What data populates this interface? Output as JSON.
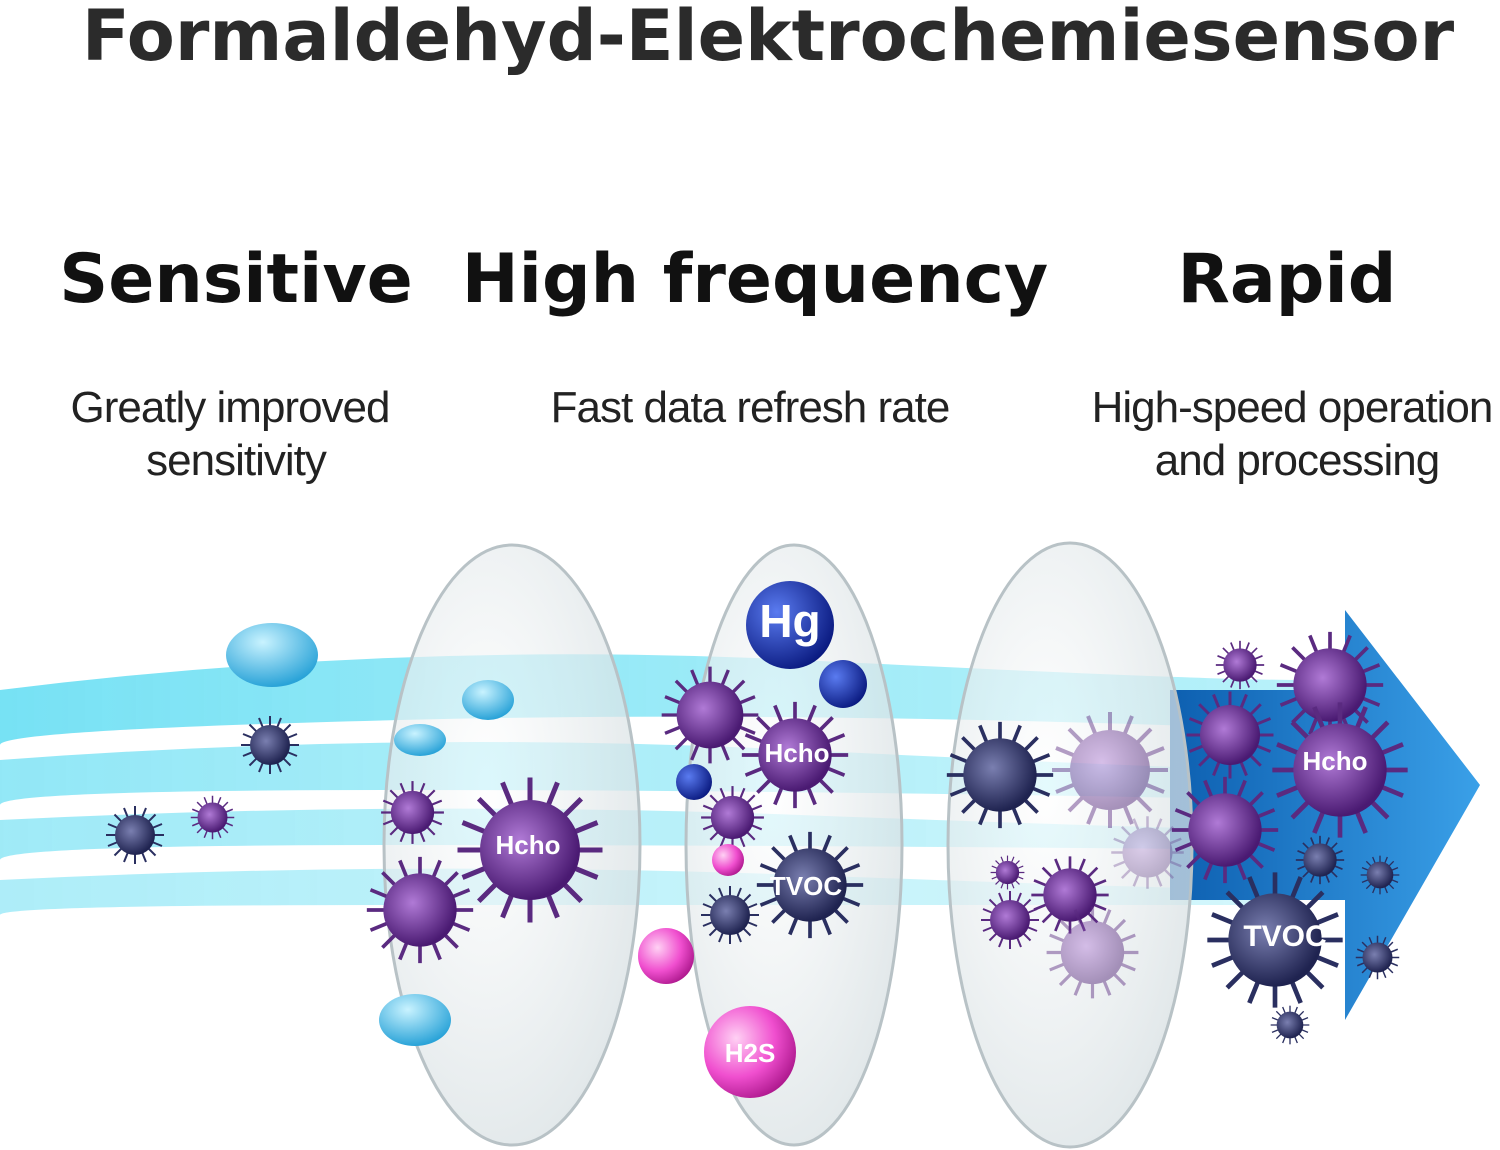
{
  "header": {
    "title": "Formaldehyd-Elektrochemiesensor"
  },
  "features": [
    {
      "heading": "Sensitive",
      "description": [
        "Greatly improved",
        "sensitivity"
      ]
    },
    {
      "heading": "High frequency",
      "description": [
        "Fast data refresh rate"
      ]
    },
    {
      "heading": "Rapid",
      "description": [
        "High-speed operation",
        "and processing"
      ]
    }
  ],
  "particles": [
    {
      "label": "Hcho"
    },
    {
      "label": "Hg"
    },
    {
      "label": "Hcho"
    },
    {
      "label": "TVOC"
    },
    {
      "label": "H2S"
    },
    {
      "label": "Hcho"
    },
    {
      "label": "TVOC"
    }
  ]
}
